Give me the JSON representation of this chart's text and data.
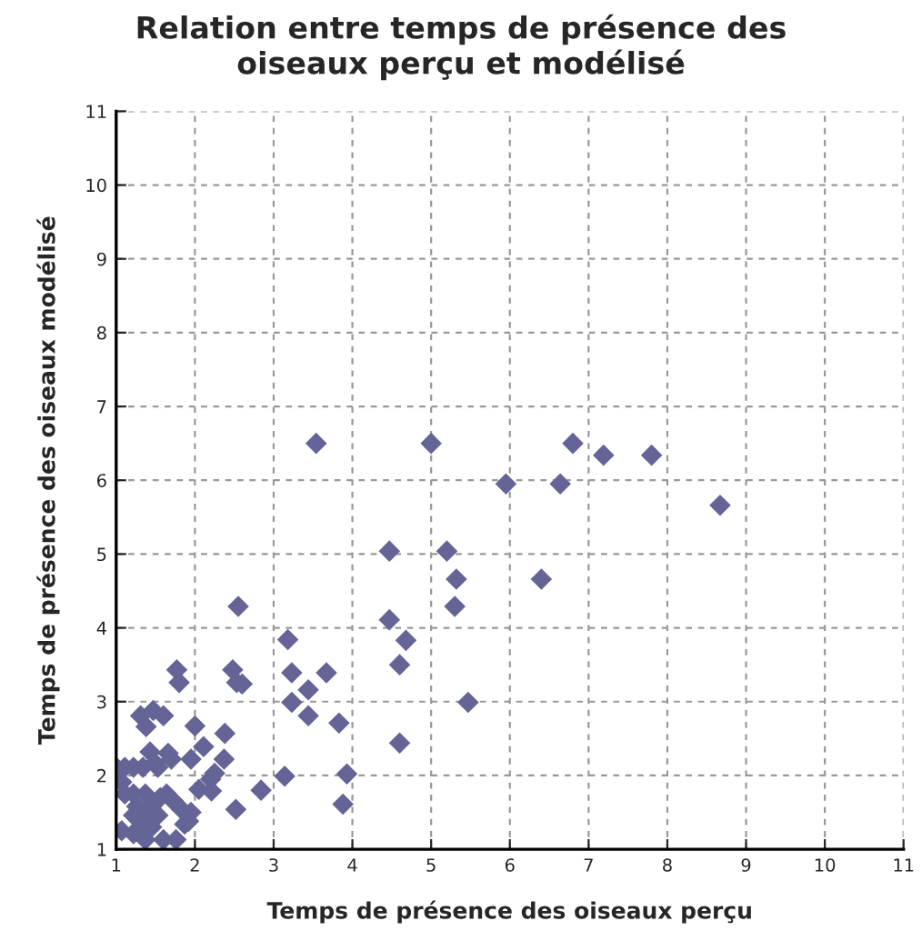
{
  "chart_data": {
    "type": "scatter",
    "title": "Relation entre temps de présence des\noiseaux perçu et modélisé",
    "xlabel": "Temps de présence des oiseaux perçu",
    "ylabel": "Temps de présence des oiseaux modélisé",
    "xlim": [
      1,
      11
    ],
    "ylim": [
      1,
      11
    ],
    "xticks": [
      1,
      2,
      3,
      4,
      5,
      6,
      7,
      8,
      9,
      10,
      11
    ],
    "yticks": [
      1,
      2,
      3,
      4,
      5,
      6,
      7,
      8,
      9,
      10,
      11
    ],
    "grid": true,
    "marker": "diamond",
    "legend": false,
    "series": [
      {
        "color": "#646496",
        "x": [
          5.0,
          6.8,
          7.19,
          7.8,
          5.95,
          6.64,
          8.67,
          4.47,
          5.2,
          5.32,
          6.4,
          5.3,
          4.47,
          4.68,
          4.6,
          5.47,
          4.6,
          3.54,
          2.55,
          3.18,
          1.77,
          1.8,
          2.48,
          2.53,
          2.6,
          3.23,
          3.67,
          3.44,
          3.23,
          3.44,
          3.83,
          3.14,
          3.93,
          3.88,
          1.31,
          1.47,
          1.6,
          1.38,
          2.0,
          2.38,
          2.11,
          2.37,
          1.95,
          1.43,
          1.66,
          1.7,
          1.49,
          1.53,
          2.25,
          2.2,
          2.05,
          2.21,
          2.84,
          2.52,
          1.0,
          1.11,
          1.22,
          1.34,
          1.11,
          1.22,
          1.07,
          1.26,
          1.37,
          1.45,
          1.56,
          1.64,
          1.72,
          1.53,
          1.83,
          1.95,
          1.87,
          1.22,
          1.37,
          1.07,
          1.22,
          1.37,
          1.45,
          1.6,
          1.76,
          1.92,
          1.3
        ],
        "values": [
          6.5,
          6.5,
          6.34,
          6.34,
          5.95,
          5.95,
          5.66,
          5.04,
          5.04,
          4.66,
          4.66,
          4.29,
          4.11,
          3.83,
          3.5,
          2.99,
          2.44,
          6.5,
          4.29,
          3.84,
          3.43,
          3.26,
          3.43,
          3.26,
          3.24,
          3.39,
          3.39,
          3.16,
          2.99,
          2.81,
          2.71,
          1.99,
          2.02,
          1.61,
          2.81,
          2.88,
          2.81,
          2.66,
          2.67,
          2.57,
          2.39,
          2.22,
          2.22,
          2.32,
          2.3,
          2.22,
          2.17,
          2.11,
          2.03,
          1.95,
          1.81,
          1.79,
          1.8,
          1.54,
          2.11,
          2.11,
          2.11,
          2.11,
          1.75,
          1.75,
          1.91,
          1.58,
          1.75,
          1.58,
          1.7,
          1.75,
          1.66,
          1.46,
          1.54,
          1.5,
          1.34,
          1.46,
          1.42,
          1.25,
          1.21,
          1.13,
          1.3,
          1.13,
          1.13,
          1.38,
          1.3
        ]
      }
    ]
  }
}
